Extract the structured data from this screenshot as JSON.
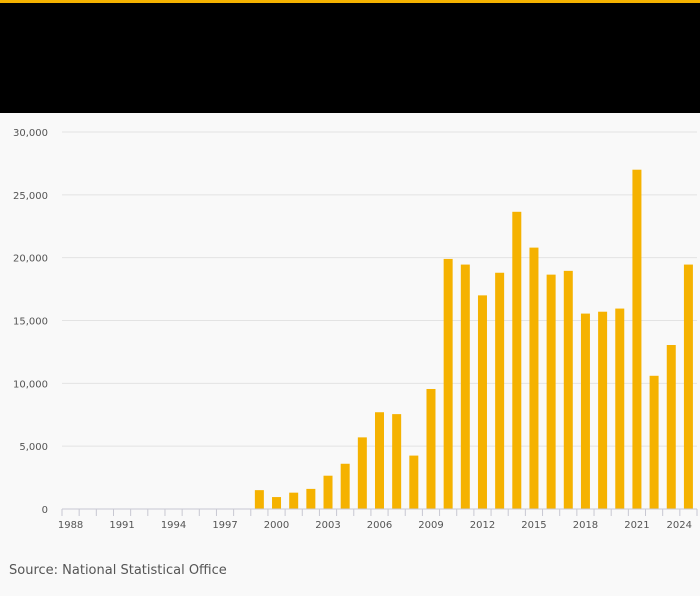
{
  "colors": {
    "accent": "#f5b200",
    "header": "#000000",
    "background": "#f9f9f9",
    "grid": "#e3e3e3",
    "axis": "#c8c8d2",
    "text": "#555555"
  },
  "source": "Source: National Statistical Office",
  "chart_data": {
    "type": "bar",
    "x": [
      1988,
      1989,
      1990,
      1991,
      1992,
      1993,
      1994,
      1995,
      1996,
      1997,
      1998,
      1999,
      2000,
      2001,
      2002,
      2003,
      2004,
      2005,
      2006,
      2007,
      2008,
      2009,
      2010,
      2011,
      2012,
      2013,
      2014,
      2015,
      2016,
      2017,
      2018,
      2019,
      2020,
      2021,
      2022,
      2023,
      2024
    ],
    "values": [
      0,
      0,
      0,
      0,
      0,
      0,
      0,
      0,
      0,
      0,
      0,
      1500,
      950,
      1300,
      1600,
      2650,
      3600,
      5700,
      7700,
      7550,
      4250,
      9550,
      19900,
      19450,
      17000,
      18800,
      23650,
      20800,
      18650,
      18950,
      15550,
      15700,
      15950,
      27000,
      10600,
      13050,
      19450
    ],
    "x_tick_labels": [
      "1988",
      "1991",
      "1994",
      "1997",
      "2000",
      "2003",
      "2006",
      "2009",
      "2012",
      "2015",
      "2018",
      "2021",
      "2024"
    ],
    "y_tick_labels": [
      "0",
      "5,000",
      "10,000",
      "15,000",
      "20,000",
      "25,000",
      "30,000"
    ],
    "y_ticks": [
      0,
      5000,
      10000,
      15000,
      20000,
      25000,
      30000
    ],
    "ylim": [
      0,
      30000
    ],
    "grid": true,
    "series_color": "#f5b200",
    "title": "",
    "xlabel": "",
    "ylabel": ""
  }
}
